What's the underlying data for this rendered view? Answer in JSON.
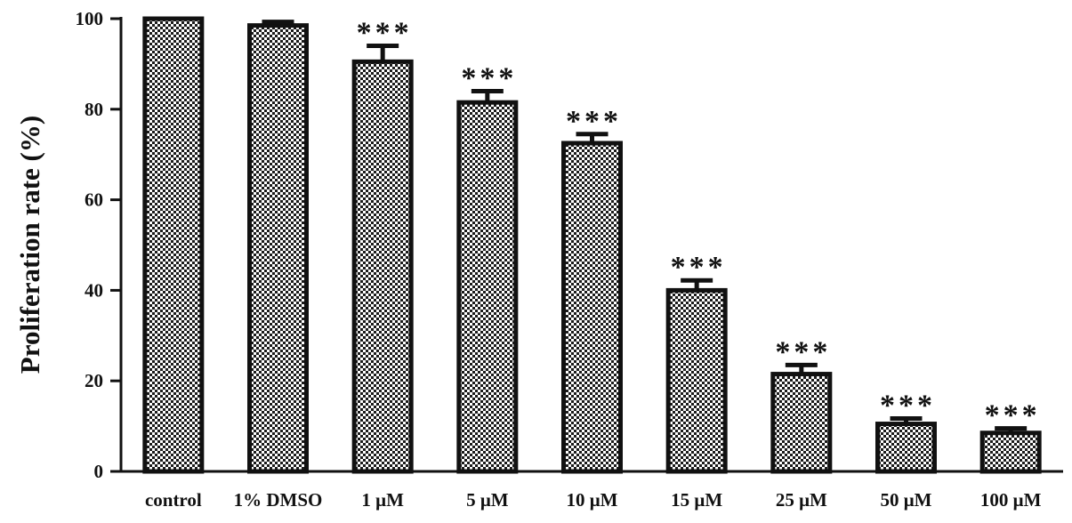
{
  "chart_data": {
    "type": "bar",
    "title": "",
    "xlabel": "",
    "ylabel": "Proliferation rate (%)",
    "ylim": [
      0,
      100
    ],
    "yticks": [
      "0",
      "20",
      "40",
      "60",
      "80",
      "100"
    ],
    "categories": [
      "control",
      "1% DMSO",
      "1 μM",
      "5 μM",
      "10 μM",
      "15 μM",
      "25 μM",
      "50 μM",
      "100 μM"
    ],
    "values": [
      100,
      98.5,
      90.5,
      81.5,
      72.5,
      40,
      21.5,
      10.5,
      8.5
    ],
    "errors": [
      0,
      0.8,
      3.5,
      2.5,
      2.0,
      2.2,
      2.0,
      1.2,
      1.0
    ],
    "significance": [
      "",
      "",
      "***",
      "***",
      "***",
      "***",
      "***",
      "***",
      "***"
    ],
    "grid": false,
    "legend": "none",
    "bar_fill": "checkered black/white",
    "colors": {
      "ink": "#111111",
      "background": "#ffffff"
    }
  }
}
